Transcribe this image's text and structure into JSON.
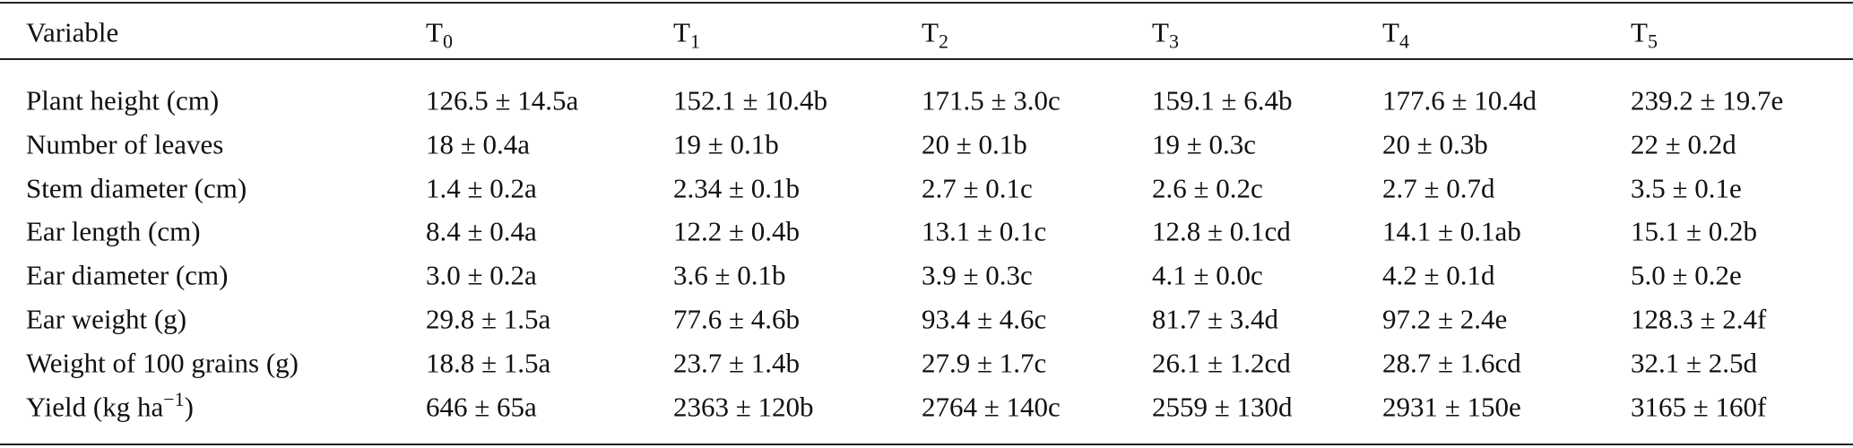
{
  "table": {
    "header": [
      [
        {
          "text": "Variable"
        }
      ],
      [
        {
          "text": "T"
        },
        {
          "sub": "0"
        }
      ],
      [
        {
          "text": "T"
        },
        {
          "sub": "1"
        }
      ],
      [
        {
          "text": "T"
        },
        {
          "sub": "2"
        }
      ],
      [
        {
          "text": "T"
        },
        {
          "sub": "3"
        }
      ],
      [
        {
          "text": "T"
        },
        {
          "sub": "4"
        }
      ],
      [
        {
          "text": "T"
        },
        {
          "sub": "5"
        }
      ]
    ],
    "rows": [
      [
        [
          {
            "text": "Plant height (cm)"
          }
        ],
        "126.5 ± 14.5a",
        "152.1 ± 10.4b",
        "171.5 ± 3.0c",
        "159.1 ± 6.4b",
        "177.6 ± 10.4d",
        "239.2 ± 19.7e"
      ],
      [
        [
          {
            "text": "Number of leaves"
          }
        ],
        "18 ± 0.4a",
        "19 ± 0.1b",
        "20 ± 0.1b",
        "19 ± 0.3c",
        "20 ± 0.3b",
        "22 ± 0.2d"
      ],
      [
        [
          {
            "text": "Stem diameter (cm)"
          }
        ],
        "1.4 ± 0.2a",
        "2.34 ± 0.1b",
        "2.7 ± 0.1c",
        "2.6 ± 0.2c",
        "2.7 ± 0.7d",
        "3.5 ± 0.1e"
      ],
      [
        [
          {
            "text": "Ear length (cm)"
          }
        ],
        "8.4 ± 0.4a",
        "12.2 ± 0.4b",
        "13.1 ± 0.1c",
        "12.8 ± 0.1cd",
        "14.1 ± 0.1ab",
        "15.1 ± 0.2b"
      ],
      [
        [
          {
            "text": "Ear diameter (cm)"
          }
        ],
        "3.0 ± 0.2a",
        "3.6 ± 0.1b",
        "3.9 ± 0.3c",
        "4.1 ± 0.0c",
        "4.2 ± 0.1d",
        "5.0 ± 0.2e"
      ],
      [
        [
          {
            "text": "Ear weight (g)"
          }
        ],
        "29.8 ± 1.5a",
        "77.6 ± 4.6b",
        "93.4 ± 4.6c",
        "81.7 ± 3.4d",
        "97.2 ± 2.4e",
        "128.3 ± 2.4f"
      ],
      [
        [
          {
            "text": "Weight of 100 grains (g)"
          }
        ],
        "18.8 ± 1.5a",
        "23.7 ± 1.4b",
        "27.9 ± 1.7c",
        "26.1 ± 1.2cd",
        "28.7 ± 1.6cd",
        "32.1 ± 2.5d"
      ],
      [
        [
          {
            "text": "Yield (kg ha"
          },
          {
            "sup": "−1"
          },
          {
            "text": ")"
          }
        ],
        "646 ± 65a",
        "2363 ± 120b",
        "2764 ± 140c",
        "2559 ± 130d",
        "2931 ± 150e",
        "3165 ± 160f"
      ]
    ]
  }
}
